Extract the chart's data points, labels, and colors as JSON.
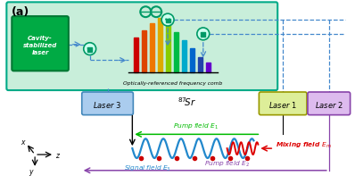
{
  "panel_label": "(a)",
  "bg_color": "#ffffff",
  "top_box_color": "#c8eeda",
  "top_box_edge": "#00aa88",
  "cavity_box_color": "#00aa44",
  "cavity_text": "Cavity-\nstabilized\nlaser",
  "comb_label": "Optically-referenced frequency comb",
  "comb_colors": [
    "#cc0000",
    "#dd4400",
    "#ee7700",
    "#ddaa00",
    "#88cc00",
    "#00bb44",
    "#00aacc",
    "#0066cc",
    "#2244aa",
    "#6600cc"
  ],
  "laser1_color": "#ddee99",
  "laser1_edge": "#999900",
  "laser2_color": "#ddbbee",
  "laser2_edge": "#8844aa",
  "laser3_color": "#aaccee",
  "laser3_edge": "#4488bb",
  "pump1_color": "#00bb00",
  "pump2_color": "#8844aa",
  "mix_color": "#dd0000",
  "signal_color": "#2288cc",
  "atom_label": "$^{87}\\!Sr$",
  "pump1_label": "Pump field $E_1$",
  "pump2_label": "Pump field $E_2$",
  "mix_label": "Mixing field $E_m$",
  "signal_label": "Signal field $E_3$",
  "dashed_color": "#4488cc",
  "lock_face": "#ccffee",
  "lock_edge": "#009966"
}
